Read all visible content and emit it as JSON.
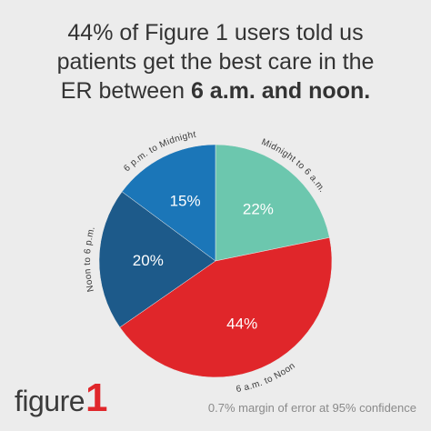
{
  "title": {
    "line1": "44% of Figure 1 users told us",
    "line2": "patients get the best care in the",
    "line3_prefix": "ER between ",
    "line3_bold": "6 a.m. and noon."
  },
  "chart_data": {
    "type": "pie",
    "title": "44% of Figure 1 users told us patients get the best care in the ER between 6 a.m. and noon.",
    "slices": [
      {
        "label": "Midnight to 6 a.m.",
        "value": 22,
        "value_label": "22%",
        "color": "#6cc7ae"
      },
      {
        "label": "6 a.m. to Noon",
        "value": 44,
        "value_label": "44%",
        "color": "#e0262a"
      },
      {
        "label": "Noon to 6 p.m.",
        "value": 20,
        "value_label": "20%",
        "color": "#1d5a8a"
      },
      {
        "label": "6 p.m. to Midnight",
        "value": 15,
        "value_label": "15%",
        "color": "#1b76b8"
      }
    ]
  },
  "logo": {
    "text": "figure",
    "mark": "1"
  },
  "footnote": "0.7% margin of error at 95% confidence"
}
